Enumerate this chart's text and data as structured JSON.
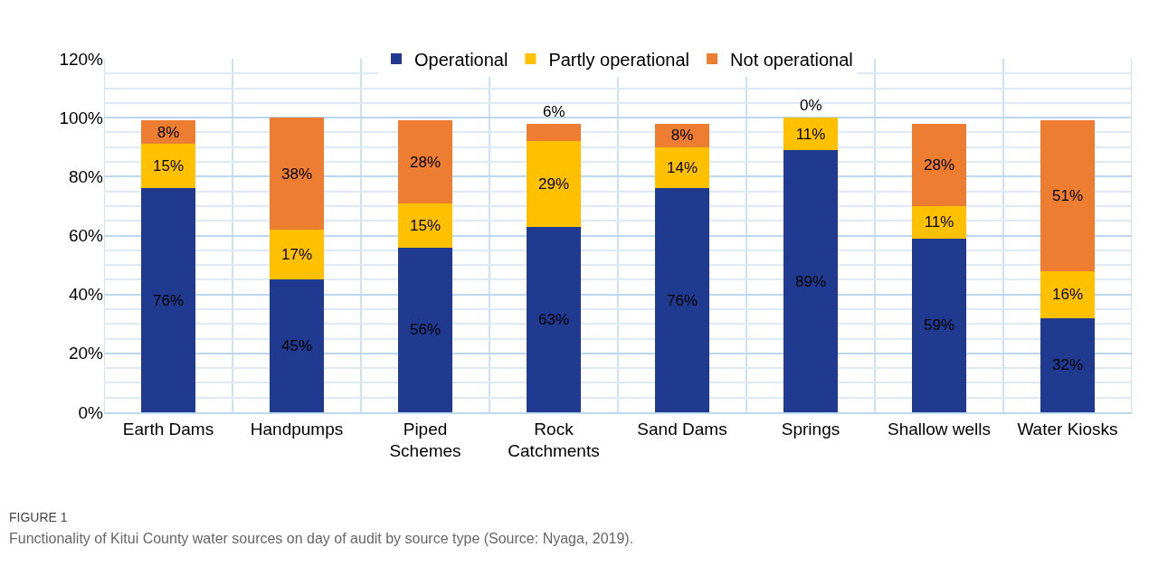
{
  "chart_data": {
    "type": "bar",
    "stacked": true,
    "categories": [
      "Earth Dams",
      "Handpumps",
      "Piped\nSchemes",
      "Rock\nCatchments",
      "Sand Dams",
      "Springs",
      "Shallow wells",
      "Water Kiosks"
    ],
    "series": [
      {
        "name": "Operational",
        "color": "#1f3a8f",
        "values": [
          76,
          45,
          56,
          63,
          76,
          89,
          59,
          32
        ],
        "value_labels": [
          "76%",
          "45%",
          "56%",
          "63%",
          "76%",
          "89%",
          "59%",
          "32%"
        ]
      },
      {
        "name": "Partly operational",
        "color": "#ffc000",
        "values": [
          15,
          17,
          15,
          29,
          14,
          11,
          11,
          16
        ],
        "value_labels": [
          "15%",
          "17%",
          "15%",
          "29%",
          "14%",
          "11%",
          "11%",
          "16%"
        ]
      },
      {
        "name": "Not operational",
        "color": "#ed7d31",
        "values": [
          8,
          38,
          28,
          6,
          8,
          0,
          28,
          51
        ],
        "value_labels": [
          "8%",
          "38%",
          "28%",
          "6%",
          "8%",
          "0%",
          "28%",
          "51%"
        ]
      }
    ],
    "ylim": [
      0,
      120
    ],
    "yticks": [
      {
        "value": 0,
        "label": "0%"
      },
      {
        "value": 20,
        "label": "20%"
      },
      {
        "value": 40,
        "label": "40%"
      },
      {
        "value": 60,
        "label": "60%"
      },
      {
        "value": 80,
        "label": "80%"
      },
      {
        "value": 100,
        "label": "100%"
      },
      {
        "value": 120,
        "label": "120%"
      }
    ],
    "grid": true,
    "legend": "top",
    "annotations": [
      "FIGURE 1",
      "Functionality of Kitui County water sources on day of audit by source type (Source: Nyaga, 2019)."
    ]
  }
}
